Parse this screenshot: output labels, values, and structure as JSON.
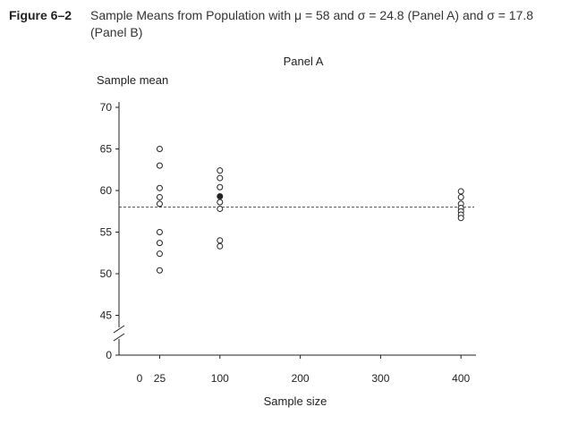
{
  "figure": {
    "number": "Figure 6–2",
    "title": "Sample Means from Population with μ = 58 and σ = 24.8 (Panel A) and σ = 17.8 (Panel B)"
  },
  "chart_data": {
    "type": "scatter",
    "panel_title": "Panel A",
    "ylabel": "Sample mean",
    "xlabel": "Sample size",
    "y_ticks": [
      70,
      65,
      60,
      55,
      50,
      45,
      0
    ],
    "y_axis_break": true,
    "y_range_upper": [
      45,
      70
    ],
    "x_ticks": [
      0,
      25,
      100,
      200,
      300,
      400
    ],
    "xlim": [
      0,
      420
    ],
    "population_mean": 58,
    "reference_line": "dashed",
    "grid": false,
    "points": [
      {
        "x": 25,
        "y": 65.0,
        "filled": false
      },
      {
        "x": 25,
        "y": 63.0,
        "filled": false
      },
      {
        "x": 25,
        "y": 60.3,
        "filled": false
      },
      {
        "x": 25,
        "y": 59.2,
        "filled": false
      },
      {
        "x": 25,
        "y": 58.4,
        "filled": false
      },
      {
        "x": 25,
        "y": 55.0,
        "filled": false
      },
      {
        "x": 25,
        "y": 53.7,
        "filled": false
      },
      {
        "x": 25,
        "y": 52.4,
        "filled": false
      },
      {
        "x": 25,
        "y": 50.4,
        "filled": false
      },
      {
        "x": 100,
        "y": 62.4,
        "filled": false
      },
      {
        "x": 100,
        "y": 61.5,
        "filled": false
      },
      {
        "x": 100,
        "y": 60.4,
        "filled": false
      },
      {
        "x": 100,
        "y": 59.3,
        "filled": true
      },
      {
        "x": 100,
        "y": 58.6,
        "filled": false
      },
      {
        "x": 100,
        "y": 57.8,
        "filled": false
      },
      {
        "x": 100,
        "y": 54.0,
        "filled": false
      },
      {
        "x": 100,
        "y": 53.3,
        "filled": false
      },
      {
        "x": 400,
        "y": 59.9,
        "filled": false
      },
      {
        "x": 400,
        "y": 59.2,
        "filled": false
      },
      {
        "x": 400,
        "y": 58.4,
        "filled": false
      },
      {
        "x": 400,
        "y": 57.9,
        "filled": false
      },
      {
        "x": 400,
        "y": 57.5,
        "filled": false
      },
      {
        "x": 400,
        "y": 57.1,
        "filled": false
      },
      {
        "x": 400,
        "y": 56.7,
        "filled": false
      }
    ]
  }
}
